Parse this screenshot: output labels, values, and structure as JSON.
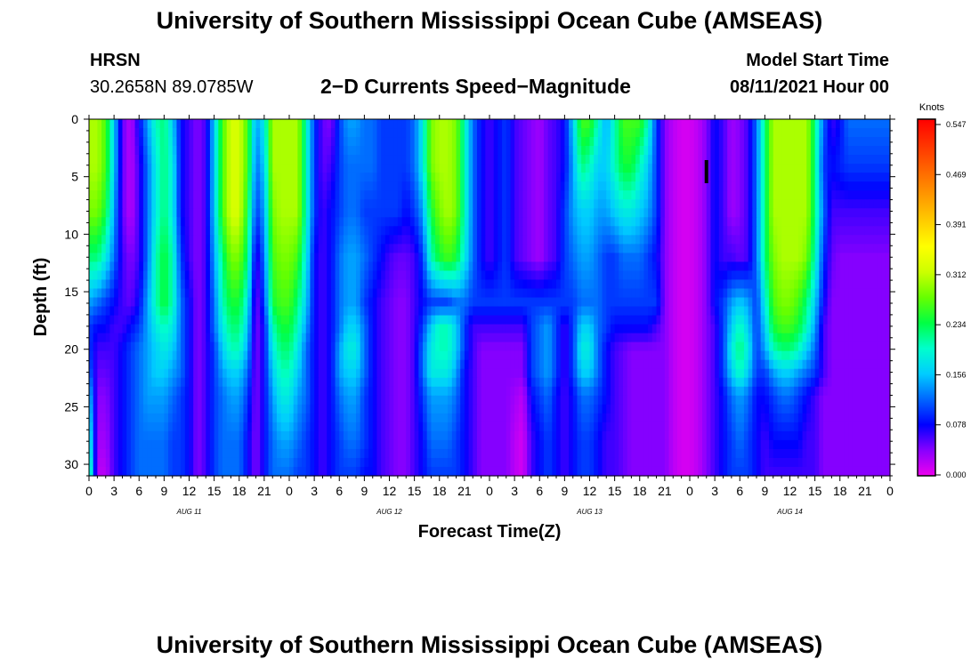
{
  "page": {
    "top_title": "University of Southern Mississippi Ocean Cube (AMSEAS)",
    "bottom_title": "University of Southern Mississippi Ocean Cube (AMSEAS)",
    "station": "HRSN",
    "coords": "30.2658N  89.0785W",
    "plot_title": "2−D Currents Speed−Magnitude",
    "model_label": "Model Start Time",
    "model_time": "08/11/2021 Hour 00"
  },
  "chart_data": {
    "type": "heatmap",
    "title": "2−D Currents Speed−Magnitude",
    "xlabel": "Forecast Time(Z)",
    "ylabel": "Depth (ft)",
    "x_ticks": [
      "0",
      "3",
      "6",
      "9",
      "12",
      "15",
      "18",
      "21",
      "0",
      "3",
      "6",
      "9",
      "12",
      "15",
      "18",
      "21",
      "0",
      "3",
      "6",
      "9",
      "12",
      "15",
      "18",
      "21",
      "0",
      "3",
      "6",
      "9",
      "12",
      "15",
      "18",
      "21",
      "0"
    ],
    "x_tick_hours": [
      0,
      3,
      6,
      9,
      12,
      15,
      18,
      21,
      24,
      27,
      30,
      33,
      36,
      39,
      42,
      45,
      48,
      51,
      54,
      57,
      60,
      63,
      66,
      69,
      72,
      75,
      78,
      81,
      84,
      87,
      90,
      93,
      96
    ],
    "date_labels": [
      "AUG 11",
      "AUG 12",
      "AUG 13",
      "AUG 14"
    ],
    "date_label_hours": [
      12,
      36,
      60,
      84
    ],
    "x_range_hours": [
      0,
      96
    ],
    "y_ticks": [
      0,
      5,
      10,
      15,
      20,
      25,
      30
    ],
    "y_range_ft": [
      0,
      31
    ],
    "y_inverted": true,
    "colorbar": {
      "unit": "Knots",
      "ticks": [
        "0.547",
        "0.469",
        "0.391",
        "0.312",
        "0.234",
        "0.156",
        "0.078",
        "0.000"
      ],
      "range": [
        0,
        0.547
      ],
      "colors": [
        "#ee00ee",
        "#8800ff",
        "#0000ff",
        "#0066ff",
        "#00ccff",
        "#00ffcc",
        "#00ff44",
        "#66ff00",
        "#ccff00",
        "#ffff00",
        "#ffcc00",
        "#ff9900",
        "#ff6600",
        "#ff3300",
        "#ff0000"
      ]
    },
    "grid": false,
    "marker_hour": 74,
    "depth_ft": [
      0,
      4,
      8,
      12,
      16,
      18,
      20,
      22,
      24,
      28,
      31
    ],
    "time_hours": [
      0,
      1,
      2,
      3,
      4,
      5,
      6,
      7,
      8,
      9,
      10,
      11,
      12,
      13,
      14,
      15,
      16,
      17,
      18,
      19,
      20,
      21,
      22,
      23,
      24,
      25,
      26,
      27,
      28,
      29,
      30,
      31,
      32,
      33,
      34,
      35,
      36,
      37,
      38,
      39,
      40,
      41,
      42,
      43,
      44,
      45,
      46,
      47,
      48,
      49,
      50,
      51,
      52,
      53,
      54,
      55,
      56,
      57,
      58,
      59,
      60,
      61,
      62,
      63,
      64,
      65,
      66,
      67,
      68,
      69,
      70,
      71,
      72,
      73,
      74,
      75,
      76,
      77,
      78,
      79,
      80,
      81,
      82,
      83,
      84,
      85,
      86,
      87,
      88,
      89,
      90,
      91,
      92,
      93,
      94,
      95,
      96
    ],
    "speed_knots": [
      [
        0.3,
        0.3,
        0.26,
        0.16,
        0.05,
        0.02,
        0.08,
        0.14,
        0.2,
        0.22,
        0.16,
        0.08,
        0.06,
        0.04,
        0.06,
        0.16,
        0.26,
        0.32,
        0.32,
        0.26,
        0.14,
        0.18,
        0.3,
        0.3,
        0.3,
        0.3,
        0.2,
        0.1,
        0.05,
        0.04,
        0.1,
        0.14,
        0.14,
        0.12,
        0.12,
        0.1,
        0.1,
        0.1,
        0.1,
        0.12,
        0.18,
        0.28,
        0.3,
        0.3,
        0.28,
        0.2,
        0.12,
        0.08,
        0.06,
        0.08,
        0.1,
        0.06,
        0.05,
        0.04,
        0.03,
        0.05,
        0.06,
        0.08,
        0.16,
        0.26,
        0.26,
        0.2,
        0.14,
        0.2,
        0.26,
        0.26,
        0.26,
        0.2,
        0.1,
        0.04,
        0.02,
        0.01,
        0.01,
        0.02,
        0.04,
        0.08,
        0.06,
        0.03,
        0.04,
        0.06,
        0.12,
        0.22,
        0.3,
        0.3,
        0.3,
        0.3,
        0.3,
        0.22,
        0.12,
        0.06,
        0.08,
        0.12,
        0.12,
        0.12,
        0.12,
        0.12,
        0.12
      ],
      [
        0.3,
        0.3,
        0.26,
        0.16,
        0.05,
        0.02,
        0.06,
        0.12,
        0.18,
        0.22,
        0.18,
        0.08,
        0.06,
        0.04,
        0.06,
        0.16,
        0.26,
        0.32,
        0.32,
        0.26,
        0.12,
        0.16,
        0.3,
        0.3,
        0.3,
        0.3,
        0.2,
        0.1,
        0.05,
        0.06,
        0.1,
        0.12,
        0.12,
        0.12,
        0.12,
        0.1,
        0.1,
        0.1,
        0.1,
        0.12,
        0.18,
        0.28,
        0.3,
        0.3,
        0.28,
        0.2,
        0.12,
        0.08,
        0.06,
        0.08,
        0.1,
        0.06,
        0.05,
        0.04,
        0.03,
        0.05,
        0.06,
        0.08,
        0.14,
        0.22,
        0.2,
        0.16,
        0.16,
        0.2,
        0.24,
        0.24,
        0.2,
        0.16,
        0.1,
        0.04,
        0.02,
        0.01,
        0.01,
        0.02,
        0.04,
        0.08,
        0.06,
        0.03,
        0.04,
        0.06,
        0.12,
        0.22,
        0.3,
        0.3,
        0.3,
        0.3,
        0.3,
        0.22,
        0.1,
        0.08,
        0.09,
        0.1,
        0.1,
        0.1,
        0.1,
        0.1,
        0.1
      ],
      [
        0.28,
        0.28,
        0.24,
        0.14,
        0.05,
        0.02,
        0.06,
        0.12,
        0.18,
        0.22,
        0.18,
        0.08,
        0.06,
        0.04,
        0.06,
        0.16,
        0.26,
        0.32,
        0.32,
        0.24,
        0.1,
        0.14,
        0.28,
        0.3,
        0.3,
        0.3,
        0.2,
        0.1,
        0.06,
        0.08,
        0.1,
        0.12,
        0.12,
        0.1,
        0.1,
        0.1,
        0.1,
        0.1,
        0.08,
        0.1,
        0.14,
        0.24,
        0.28,
        0.3,
        0.28,
        0.2,
        0.12,
        0.08,
        0.06,
        0.08,
        0.1,
        0.06,
        0.05,
        0.04,
        0.03,
        0.05,
        0.06,
        0.1,
        0.14,
        0.16,
        0.16,
        0.14,
        0.14,
        0.16,
        0.18,
        0.18,
        0.16,
        0.14,
        0.1,
        0.04,
        0.02,
        0.01,
        0.01,
        0.02,
        0.04,
        0.08,
        0.06,
        0.03,
        0.04,
        0.06,
        0.12,
        0.22,
        0.3,
        0.3,
        0.3,
        0.3,
        0.3,
        0.22,
        0.12,
        0.06,
        0.06,
        0.06,
        0.06,
        0.06,
        0.06,
        0.06,
        0.06
      ],
      [
        0.22,
        0.22,
        0.18,
        0.12,
        0.06,
        0.04,
        0.06,
        0.12,
        0.2,
        0.24,
        0.2,
        0.1,
        0.06,
        0.04,
        0.06,
        0.14,
        0.22,
        0.28,
        0.28,
        0.22,
        0.06,
        0.12,
        0.26,
        0.28,
        0.28,
        0.26,
        0.18,
        0.08,
        0.06,
        0.08,
        0.12,
        0.14,
        0.14,
        0.12,
        0.1,
        0.08,
        0.06,
        0.05,
        0.05,
        0.06,
        0.1,
        0.2,
        0.24,
        0.26,
        0.24,
        0.18,
        0.12,
        0.08,
        0.06,
        0.08,
        0.1,
        0.06,
        0.05,
        0.04,
        0.03,
        0.05,
        0.06,
        0.1,
        0.12,
        0.14,
        0.14,
        0.12,
        0.1,
        0.1,
        0.12,
        0.12,
        0.12,
        0.1,
        0.08,
        0.04,
        0.02,
        0.01,
        0.01,
        0.02,
        0.04,
        0.08,
        0.06,
        0.06,
        0.05,
        0.06,
        0.12,
        0.22,
        0.28,
        0.3,
        0.3,
        0.3,
        0.28,
        0.2,
        0.1,
        0.05,
        0.04,
        0.04,
        0.04,
        0.04,
        0.04,
        0.04,
        0.04
      ],
      [
        0.14,
        0.12,
        0.1,
        0.08,
        0.06,
        0.05,
        0.08,
        0.14,
        0.2,
        0.24,
        0.2,
        0.12,
        0.08,
        0.04,
        0.06,
        0.12,
        0.2,
        0.24,
        0.24,
        0.18,
        0.04,
        0.1,
        0.24,
        0.26,
        0.26,
        0.22,
        0.16,
        0.08,
        0.06,
        0.08,
        0.12,
        0.14,
        0.14,
        0.1,
        0.08,
        0.06,
        0.05,
        0.04,
        0.04,
        0.06,
        0.08,
        0.1,
        0.1,
        0.1,
        0.12,
        0.12,
        0.1,
        0.1,
        0.1,
        0.1,
        0.1,
        0.1,
        0.1,
        0.1,
        0.1,
        0.1,
        0.1,
        0.1,
        0.1,
        0.12,
        0.12,
        0.12,
        0.1,
        0.1,
        0.1,
        0.1,
        0.1,
        0.1,
        0.1,
        0.04,
        0.02,
        0.01,
        0.01,
        0.02,
        0.04,
        0.08,
        0.1,
        0.14,
        0.16,
        0.14,
        0.1,
        0.18,
        0.26,
        0.28,
        0.28,
        0.26,
        0.22,
        0.16,
        0.08,
        0.04,
        0.04,
        0.04,
        0.04,
        0.04,
        0.04,
        0.04,
        0.04
      ],
      [
        0.1,
        0.08,
        0.08,
        0.06,
        0.06,
        0.08,
        0.1,
        0.14,
        0.18,
        0.2,
        0.18,
        0.12,
        0.08,
        0.04,
        0.06,
        0.12,
        0.18,
        0.22,
        0.22,
        0.16,
        0.04,
        0.08,
        0.2,
        0.24,
        0.24,
        0.2,
        0.14,
        0.08,
        0.06,
        0.08,
        0.12,
        0.16,
        0.16,
        0.12,
        0.08,
        0.06,
        0.05,
        0.04,
        0.04,
        0.06,
        0.1,
        0.16,
        0.2,
        0.2,
        0.16,
        0.1,
        0.06,
        0.06,
        0.06,
        0.06,
        0.06,
        0.06,
        0.06,
        0.1,
        0.12,
        0.14,
        0.1,
        0.06,
        0.1,
        0.16,
        0.16,
        0.12,
        0.1,
        0.08,
        0.08,
        0.08,
        0.08,
        0.08,
        0.06,
        0.04,
        0.02,
        0.01,
        0.01,
        0.02,
        0.04,
        0.06,
        0.1,
        0.16,
        0.2,
        0.16,
        0.1,
        0.16,
        0.24,
        0.26,
        0.26,
        0.24,
        0.2,
        0.14,
        0.06,
        0.04,
        0.04,
        0.04,
        0.04,
        0.04,
        0.04,
        0.04,
        0.04
      ],
      [
        0.1,
        0.06,
        0.06,
        0.06,
        0.08,
        0.1,
        0.12,
        0.14,
        0.16,
        0.18,
        0.16,
        0.12,
        0.08,
        0.04,
        0.06,
        0.1,
        0.16,
        0.2,
        0.2,
        0.14,
        0.04,
        0.08,
        0.18,
        0.22,
        0.22,
        0.18,
        0.12,
        0.08,
        0.06,
        0.08,
        0.14,
        0.18,
        0.18,
        0.12,
        0.08,
        0.06,
        0.05,
        0.04,
        0.04,
        0.06,
        0.12,
        0.18,
        0.2,
        0.2,
        0.16,
        0.1,
        0.06,
        0.04,
        0.04,
        0.04,
        0.04,
        0.04,
        0.04,
        0.1,
        0.12,
        0.14,
        0.1,
        0.06,
        0.1,
        0.18,
        0.18,
        0.12,
        0.08,
        0.06,
        0.05,
        0.04,
        0.04,
        0.04,
        0.04,
        0.04,
        0.02,
        0.01,
        0.01,
        0.02,
        0.04,
        0.06,
        0.1,
        0.18,
        0.22,
        0.18,
        0.1,
        0.14,
        0.2,
        0.22,
        0.22,
        0.2,
        0.16,
        0.12,
        0.06,
        0.04,
        0.04,
        0.04,
        0.04,
        0.04,
        0.04,
        0.04,
        0.04
      ],
      [
        0.12,
        0.05,
        0.05,
        0.06,
        0.08,
        0.1,
        0.12,
        0.14,
        0.16,
        0.16,
        0.14,
        0.12,
        0.08,
        0.04,
        0.06,
        0.1,
        0.14,
        0.16,
        0.16,
        0.12,
        0.04,
        0.08,
        0.16,
        0.2,
        0.2,
        0.16,
        0.12,
        0.08,
        0.06,
        0.08,
        0.14,
        0.16,
        0.16,
        0.12,
        0.08,
        0.06,
        0.05,
        0.04,
        0.04,
        0.06,
        0.12,
        0.18,
        0.18,
        0.18,
        0.14,
        0.08,
        0.06,
        0.04,
        0.04,
        0.04,
        0.04,
        0.04,
        0.04,
        0.1,
        0.12,
        0.14,
        0.1,
        0.06,
        0.1,
        0.16,
        0.16,
        0.12,
        0.08,
        0.06,
        0.05,
        0.04,
        0.04,
        0.04,
        0.04,
        0.04,
        0.02,
        0.01,
        0.01,
        0.02,
        0.04,
        0.06,
        0.1,
        0.16,
        0.2,
        0.16,
        0.1,
        0.1,
        0.14,
        0.16,
        0.16,
        0.14,
        0.12,
        0.1,
        0.06,
        0.04,
        0.04,
        0.04,
        0.04,
        0.04,
        0.04,
        0.04,
        0.04
      ],
      [
        0.16,
        0.04,
        0.04,
        0.06,
        0.08,
        0.1,
        0.12,
        0.14,
        0.14,
        0.14,
        0.12,
        0.1,
        0.08,
        0.04,
        0.06,
        0.1,
        0.12,
        0.14,
        0.14,
        0.1,
        0.04,
        0.08,
        0.14,
        0.18,
        0.18,
        0.14,
        0.12,
        0.08,
        0.06,
        0.08,
        0.12,
        0.14,
        0.14,
        0.1,
        0.08,
        0.06,
        0.05,
        0.04,
        0.04,
        0.06,
        0.1,
        0.14,
        0.14,
        0.14,
        0.12,
        0.08,
        0.06,
        0.04,
        0.04,
        0.04,
        0.04,
        0.03,
        0.02,
        0.08,
        0.1,
        0.12,
        0.08,
        0.06,
        0.08,
        0.12,
        0.12,
        0.1,
        0.08,
        0.06,
        0.05,
        0.04,
        0.04,
        0.04,
        0.04,
        0.04,
        0.02,
        0.01,
        0.01,
        0.02,
        0.04,
        0.06,
        0.08,
        0.12,
        0.14,
        0.12,
        0.08,
        0.08,
        0.1,
        0.12,
        0.12,
        0.1,
        0.08,
        0.06,
        0.04,
        0.04,
        0.04,
        0.04,
        0.04,
        0.04,
        0.04,
        0.04,
        0.04
      ],
      [
        0.2,
        0.03,
        0.03,
        0.06,
        0.08,
        0.1,
        0.12,
        0.12,
        0.12,
        0.12,
        0.1,
        0.1,
        0.08,
        0.04,
        0.06,
        0.1,
        0.12,
        0.12,
        0.12,
        0.08,
        0.04,
        0.08,
        0.12,
        0.14,
        0.14,
        0.12,
        0.1,
        0.08,
        0.06,
        0.08,
        0.1,
        0.12,
        0.12,
        0.1,
        0.08,
        0.06,
        0.05,
        0.04,
        0.04,
        0.06,
        0.08,
        0.12,
        0.12,
        0.12,
        0.1,
        0.08,
        0.06,
        0.04,
        0.04,
        0.04,
        0.04,
        0.02,
        0.01,
        0.06,
        0.08,
        0.1,
        0.08,
        0.06,
        0.08,
        0.1,
        0.1,
        0.08,
        0.06,
        0.06,
        0.05,
        0.04,
        0.04,
        0.04,
        0.04,
        0.04,
        0.02,
        0.01,
        0.01,
        0.02,
        0.04,
        0.06,
        0.08,
        0.1,
        0.12,
        0.1,
        0.08,
        0.06,
        0.08,
        0.08,
        0.08,
        0.08,
        0.06,
        0.06,
        0.04,
        0.04,
        0.04,
        0.04,
        0.04,
        0.04,
        0.04,
        0.04,
        0.04
      ],
      [
        0.24,
        0.02,
        0.02,
        0.06,
        0.08,
        0.1,
        0.12,
        0.12,
        0.12,
        0.12,
        0.1,
        0.1,
        0.08,
        0.04,
        0.06,
        0.1,
        0.12,
        0.12,
        0.12,
        0.08,
        0.04,
        0.08,
        0.12,
        0.12,
        0.12,
        0.1,
        0.1,
        0.08,
        0.06,
        0.08,
        0.1,
        0.1,
        0.1,
        0.08,
        0.08,
        0.06,
        0.05,
        0.04,
        0.04,
        0.06,
        0.08,
        0.1,
        0.1,
        0.1,
        0.1,
        0.08,
        0.06,
        0.04,
        0.04,
        0.04,
        0.04,
        0.02,
        0.01,
        0.06,
        0.08,
        0.1,
        0.08,
        0.06,
        0.08,
        0.1,
        0.1,
        0.08,
        0.06,
        0.06,
        0.05,
        0.04,
        0.04,
        0.04,
        0.04,
        0.04,
        0.02,
        0.01,
        0.01,
        0.02,
        0.04,
        0.06,
        0.08,
        0.1,
        0.1,
        0.1,
        0.08,
        0.06,
        0.06,
        0.06,
        0.06,
        0.06,
        0.06,
        0.06,
        0.04,
        0.04,
        0.04,
        0.04,
        0.04,
        0.04,
        0.04,
        0.04,
        0.04
      ]
    ]
  }
}
